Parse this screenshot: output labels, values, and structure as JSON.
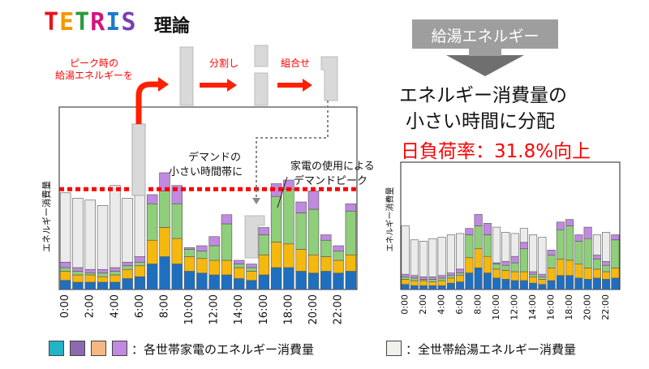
{
  "header": {
    "logo_text": "TETRIS",
    "logo_suffix": "理論",
    "right_banner": "給湯エネルギー"
  },
  "left_chart_annotations": {
    "peak_label_line1": "ピーク時の",
    "peak_label_line2": "給湯エネルギーを",
    "step_split": "分割し",
    "step_combine": "組合せ",
    "low_demand_line1": "デマンドの",
    "low_demand_line2": "小さい時間帯に",
    "appliance_peak_line1": "家電の使用による",
    "appliance_peak_line2": "デマンドピーク"
  },
  "right_texts": {
    "headline_line1": "エネルギー消費量の",
    "headline_line2": "小さい時間に分配",
    "load_factor": "日負荷率：31.8%向上"
  },
  "legend": {
    "appliance_label": "：各世帯家電のエネルギー消費量",
    "hot_water_label": "：全世帯給湯エネルギー消費量"
  },
  "colors": {
    "blue": "#1f6fbf",
    "orange": "#f5b80f",
    "green": "#8fce7a",
    "purple": "#c08ae0",
    "gray": "#ebebeb",
    "peak_line": "#ff0000",
    "arrow_red": "#ff2000",
    "logo_colors": [
      "#e8141d",
      "#f39800",
      "#2c9a3d",
      "#d4137f",
      "#1b7ac9",
      "#7b3fb4"
    ],
    "legend_swatches": [
      "#23b3c7",
      "#8b6ab0",
      "#f5b882",
      "#c08ae0"
    ],
    "banner_bg": "#9e9e9e"
  },
  "chart_data": [
    {
      "type": "bar",
      "title": "",
      "ylabel": "エネルギー消費量",
      "categories": [
        "0:00",
        "1:00",
        "2:00",
        "3:00",
        "4:00",
        "5:00",
        "6:00",
        "7:00",
        "8:00",
        "9:00",
        "10:00",
        "11:00",
        "12:00",
        "13:00",
        "14:00",
        "15:00",
        "16:00",
        "17:00",
        "18:00",
        "19:00",
        "20:00",
        "21:00",
        "22:00",
        "23:00"
      ],
      "xtick_labels": [
        "0:00",
        "2:00",
        "4:00",
        "6:00",
        "8:00",
        "10:00",
        "12:00",
        "14:00",
        "16:00",
        "18:00",
        "20:00",
        "22:00"
      ],
      "ylim": [
        0,
        100
      ],
      "peak_line": 55,
      "series": [
        {
          "values": [
            5,
            4,
            4,
            4,
            4,
            6,
            7,
            14,
            18,
            14,
            10,
            9,
            8,
            8,
            6,
            5,
            8,
            12,
            12,
            10,
            9,
            10,
            9,
            10
          ]
        },
        {
          "values": [
            5,
            4,
            4,
            3,
            4,
            5,
            6,
            13,
            16,
            14,
            8,
            8,
            8,
            8,
            6,
            5,
            11,
            14,
            13,
            12,
            10,
            8,
            7,
            9
          ]
        },
        {
          "values": [
            2,
            2,
            1,
            2,
            2,
            2,
            2,
            20,
            20,
            19,
            4,
            4,
            8,
            20,
            2,
            2,
            11,
            25,
            30,
            20,
            25,
            9,
            5,
            24
          ]
        },
        {
          "values": [
            3,
            2,
            2,
            2,
            2,
            2,
            3,
            5,
            10,
            10,
            1,
            3,
            5,
            5,
            2,
            2,
            4,
            7,
            5,
            6,
            10,
            3,
            3,
            4
          ]
        },
        {
          "values": [
            38,
            38,
            38,
            35,
            45,
            35,
            40,
            0,
            0,
            0,
            0,
            0,
            0,
            0,
            0,
            0,
            0,
            0,
            0,
            0,
            0,
            0,
            0,
            0
          ]
        }
      ]
    },
    {
      "type": "bar",
      "title": "",
      "ylabel": "エネルギー消費量",
      "categories": [
        "0:00",
        "1:00",
        "2:00",
        "3:00",
        "4:00",
        "5:00",
        "6:00",
        "7:00",
        "8:00",
        "9:00",
        "10:00",
        "11:00",
        "12:00",
        "13:00",
        "14:00",
        "15:00",
        "16:00",
        "17:00",
        "18:00",
        "19:00",
        "20:00",
        "21:00",
        "22:00",
        "23:00"
      ],
      "xtick_labels": [
        "0:00",
        "2:00",
        "4:00",
        "6:00",
        "8:00",
        "10:00",
        "12:00",
        "14:00",
        "16:00",
        "18:00",
        "20:00",
        "22:00"
      ],
      "ylim": [
        0,
        100
      ],
      "series": [
        {
          "values": [
            4,
            3,
            3,
            3,
            3,
            5,
            6,
            13,
            17,
            13,
            9,
            8,
            7,
            7,
            5,
            4,
            7,
            11,
            11,
            9,
            8,
            9,
            8,
            9
          ]
        },
        {
          "values": [
            4,
            4,
            4,
            3,
            4,
            4,
            5,
            12,
            15,
            13,
            7,
            7,
            7,
            7,
            5,
            4,
            10,
            13,
            12,
            11,
            9,
            7,
            6,
            8
          ]
        },
        {
          "values": [
            2,
            2,
            1,
            2,
            2,
            2,
            2,
            18,
            18,
            17,
            4,
            4,
            7,
            18,
            2,
            2,
            10,
            23,
            27,
            18,
            23,
            8,
            5,
            22
          ]
        },
        {
          "values": [
            2,
            2,
            2,
            2,
            2,
            2,
            3,
            5,
            9,
            9,
            1,
            3,
            5,
            5,
            2,
            2,
            4,
            6,
            5,
            5,
            9,
            3,
            3,
            4
          ]
        },
        {
          "values": [
            38,
            28,
            28,
            30,
            30,
            30,
            28,
            0,
            0,
            0,
            28,
            23,
            18,
            11,
            29,
            29,
            0,
            0,
            0,
            0,
            0,
            16,
            23,
            0
          ]
        }
      ]
    }
  ]
}
